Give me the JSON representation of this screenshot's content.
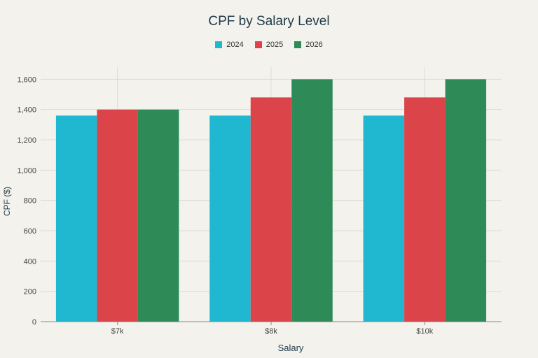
{
  "chart_data": {
    "type": "bar",
    "title": "CPF by Salary Level",
    "xlabel": "Salary",
    "ylabel": "CPF ($)",
    "categories": [
      "$7k",
      "$8k",
      "$10k"
    ],
    "series": [
      {
        "name": "2024",
        "color": "#1fb8d0",
        "values": [
          1360,
          1360,
          1360
        ]
      },
      {
        "name": "2025",
        "color": "#db4448",
        "values": [
          1400,
          1480,
          1480
        ]
      },
      {
        "name": "2026",
        "color": "#2e8b57",
        "values": [
          1400,
          1600,
          1600
        ]
      }
    ],
    "ylim": [
      0,
      1680
    ],
    "yticks": [
      0,
      200,
      400,
      600,
      800,
      1000,
      1200,
      1400,
      1600
    ],
    "ytick_labels": [
      "0",
      "200",
      "400",
      "600",
      "800",
      "1,000",
      "1,200",
      "1,400",
      "1,600"
    ],
    "grid": true,
    "legend_position": "top-center"
  }
}
